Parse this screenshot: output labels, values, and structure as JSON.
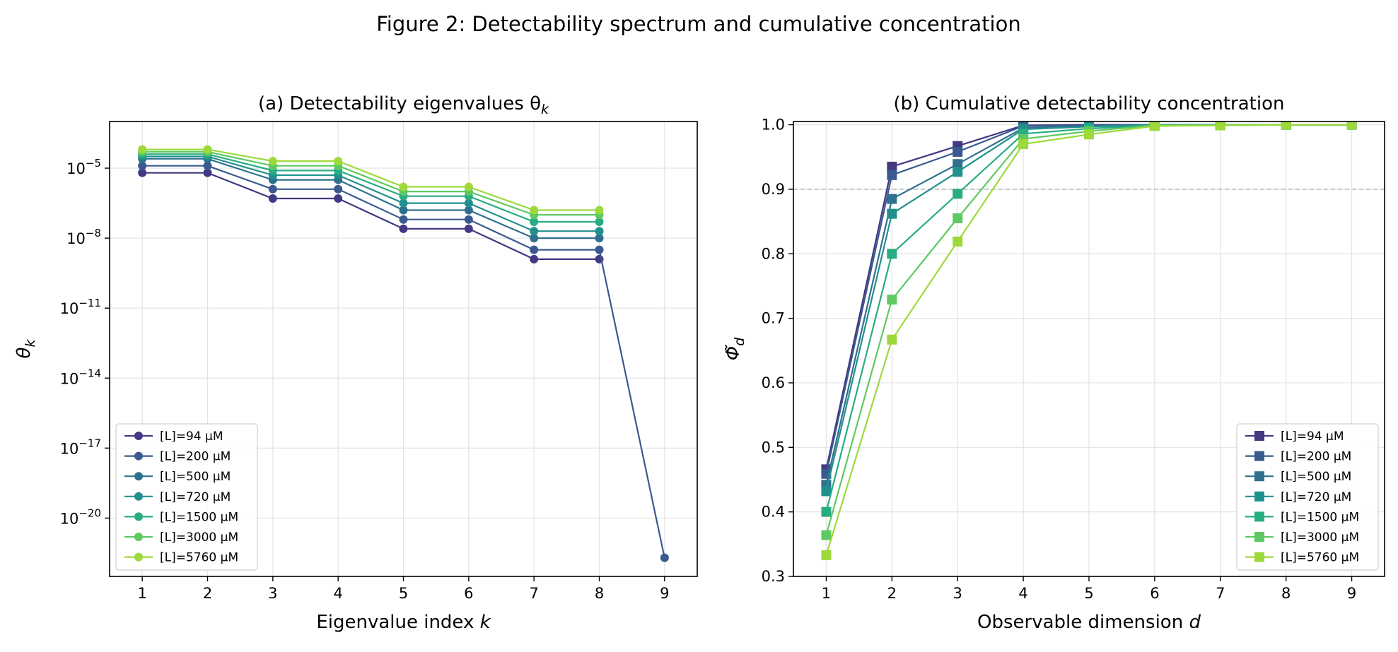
{
  "figure_title": "Figure 2: Detectability spectrum and cumulative concentration",
  "legend_labels": [
    "[L]=94 µM",
    "[L]=200 µM",
    "[L]=500 µM",
    "[L]=720 µM",
    "[L]=1500 µM",
    "[L]=3000 µM",
    "[L]=5760 µM"
  ],
  "colors": [
    "#433983",
    "#3a5a8f",
    "#2f708e",
    "#21908d",
    "#27ad81",
    "#5ec962",
    "#9dd93b"
  ],
  "reference_color": "#b0b0b0",
  "chart_data": [
    {
      "type": "line",
      "id": "a",
      "title": "(a) Detectability eigenvalues θ",
      "title_subscript": "k",
      "xlabel": "Eigenvalue index",
      "xlabel_var": "k",
      "ylabel": "θ",
      "ylabel_subscript": "k",
      "yscale": "log",
      "xlim": [
        0.5,
        9.5
      ],
      "ylim_log10": [
        -22.5,
        -3.0
      ],
      "xticks": [
        1,
        2,
        3,
        4,
        5,
        6,
        7,
        8,
        9
      ],
      "yticks_exponents": [
        -5,
        -8,
        -11,
        -14,
        -17,
        -20
      ],
      "ytick_base": "10",
      "grid": true,
      "marker": "circle",
      "legend_position": "lower-left",
      "series": [
        {
          "name": "[L]=94 µM",
          "x": [
            1,
            2,
            3,
            4,
            5,
            6,
            7,
            8
          ],
          "log10_values": [
            -5.2,
            -5.2,
            -6.3,
            -6.3,
            -7.6,
            -7.6,
            -8.9,
            -8.9
          ]
        },
        {
          "name": "[L]=200 µM",
          "x": [
            1,
            2,
            3,
            4,
            5,
            6,
            7,
            8,
            9
          ],
          "log10_values": [
            -4.9,
            -4.9,
            -5.9,
            -5.9,
            -7.2,
            -7.2,
            -8.5,
            -8.5,
            -21.7
          ]
        },
        {
          "name": "[L]=500 µM",
          "x": [
            1,
            2,
            3,
            4,
            5,
            6,
            7,
            8
          ],
          "log10_values": [
            -4.6,
            -4.6,
            -5.5,
            -5.5,
            -6.8,
            -6.8,
            -8.0,
            -8.0
          ]
        },
        {
          "name": "[L]=720 µM",
          "x": [
            1,
            2,
            3,
            4,
            5,
            6,
            7,
            8
          ],
          "log10_values": [
            -4.5,
            -4.5,
            -5.3,
            -5.3,
            -6.5,
            -6.5,
            -7.7,
            -7.7
          ]
        },
        {
          "name": "[L]=1500 µM",
          "x": [
            1,
            2,
            3,
            4,
            5,
            6,
            7,
            8
          ],
          "log10_values": [
            -4.4,
            -4.4,
            -5.1,
            -5.1,
            -6.2,
            -6.2,
            -7.3,
            -7.3
          ]
        },
        {
          "name": "[L]=3000 µM",
          "x": [
            1,
            2,
            3,
            4,
            5,
            6,
            7,
            8
          ],
          "log10_values": [
            -4.3,
            -4.3,
            -4.9,
            -4.9,
            -6.0,
            -6.0,
            -7.0,
            -7.0
          ]
        },
        {
          "name": "[L]=5760 µM",
          "x": [
            1,
            2,
            3,
            4,
            5,
            6,
            7,
            8
          ],
          "log10_values": [
            -4.2,
            -4.2,
            -4.7,
            -4.7,
            -5.8,
            -5.8,
            -6.8,
            -6.8
          ]
        }
      ]
    },
    {
      "type": "line",
      "id": "b",
      "title": "(b) Cumulative detectability concentration",
      "xlabel": "Observable dimension",
      "xlabel_var": "d",
      "ylabel": "Φ̃",
      "ylabel_subscript": "d",
      "yscale": "linear",
      "xlim": [
        0.5,
        9.5
      ],
      "ylim": [
        0.3,
        1.005
      ],
      "xticks": [
        1,
        2,
        3,
        4,
        5,
        6,
        7,
        8,
        9
      ],
      "yticks": [
        0.3,
        0.4,
        0.5,
        0.6,
        0.7,
        0.8,
        0.9,
        1.0
      ],
      "ytick_labels": [
        "0.3",
        "0.4",
        "0.5",
        "0.6",
        "0.7",
        "0.8",
        "0.9",
        "1.0"
      ],
      "grid": true,
      "marker": "square",
      "reference_line": 0.9,
      "legend_position": "lower-right",
      "series": [
        {
          "name": "[L]=94 µM",
          "values": [
            0.466,
            0.935,
            0.967,
            0.999,
            1.0,
            1.0,
            1.0,
            1.0,
            1.0
          ]
        },
        {
          "name": "[L]=200 µM",
          "values": [
            0.459,
            0.922,
            0.958,
            0.998,
            0.999,
            1.0,
            1.0,
            1.0,
            1.0
          ]
        },
        {
          "name": "[L]=500 µM",
          "values": [
            0.442,
            0.885,
            0.939,
            0.995,
            0.998,
            1.0,
            1.0,
            1.0,
            1.0
          ]
        },
        {
          "name": "[L]=720 µM",
          "values": [
            0.432,
            0.862,
            0.927,
            0.993,
            0.997,
            1.0,
            1.0,
            1.0,
            1.0
          ]
        },
        {
          "name": "[L]=1500 µM",
          "values": [
            0.4,
            0.8,
            0.893,
            0.986,
            0.994,
            0.999,
            1.0,
            1.0,
            1.0
          ]
        },
        {
          "name": "[L]=3000 µM",
          "values": [
            0.364,
            0.729,
            0.855,
            0.978,
            0.99,
            0.999,
            0.999,
            1.0,
            1.0
          ]
        },
        {
          "name": "[L]=5760 µM",
          "values": [
            0.333,
            0.667,
            0.819,
            0.97,
            0.985,
            0.998,
            0.999,
            1.0,
            1.0
          ]
        }
      ]
    }
  ]
}
